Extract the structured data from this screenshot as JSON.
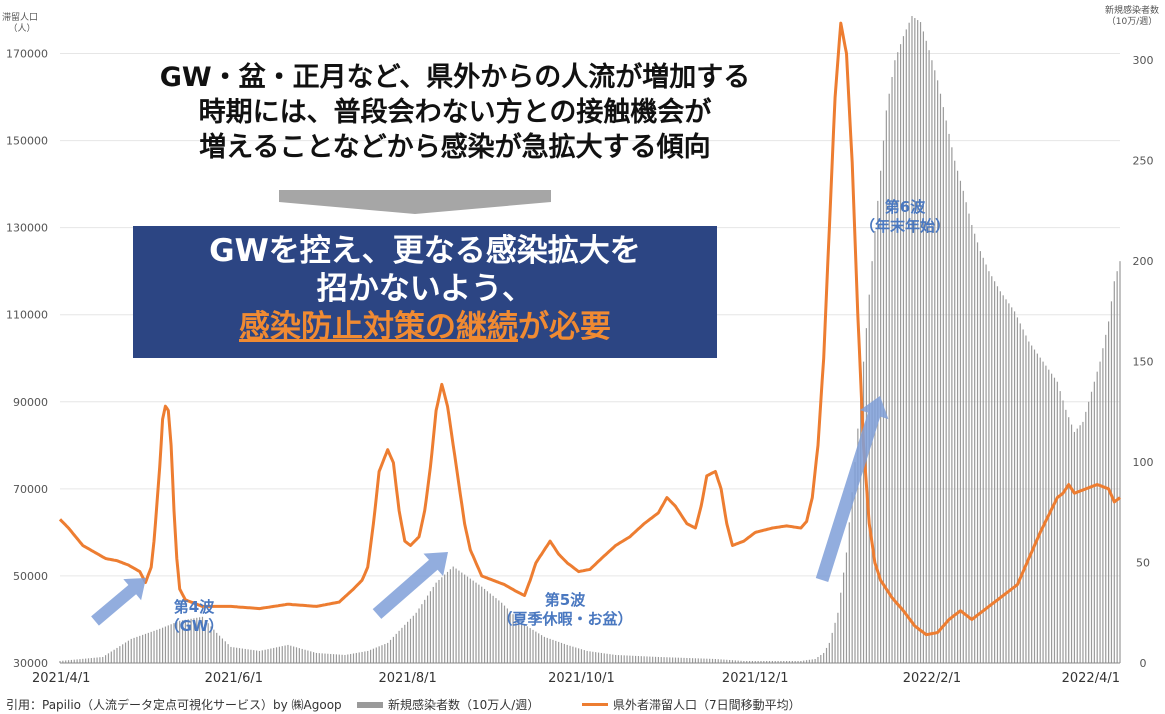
{
  "headline": {
    "line1": "GW・盆・正月など、県外からの人流が増加する",
    "line2": "時期には、普段会わない方との接触機会が",
    "line3": "増えることなどから感染が急拡大する傾向"
  },
  "callout": {
    "line1": "GWを控え、更なる感染拡大を",
    "line2": "招かないよう、",
    "line3_underlined": "感染防止対策の継続",
    "line3_rest": "が必要"
  },
  "wave_labels": {
    "w4_a": "第4波",
    "w4_b": "（GW）",
    "w5_a": "第5波",
    "w5_b": "（夏季休暇・お盆）",
    "w6_a": "第6波",
    "w6_b": "（年末年始）"
  },
  "footer": {
    "source": "引用：Papilio（人流データ定点可視化サービス）by ㈱Agoop",
    "legend_cases": "新規感染者数（10万人/週）",
    "legend_pop": "県外者滞留人口（7日間移動平均）"
  },
  "colors": {
    "bars": "#9a9a9a",
    "line": "#ed7d31",
    "arrows": "#7f9fd8",
    "callout_bg": "#2c4583",
    "callout_emph": "#f08a32",
    "wave_label": "#4a78c0"
  },
  "chart_data": {
    "type": "bar+line",
    "left_axis_title_1": "滞留人口",
    "left_axis_title_2": "（人）",
    "right_axis_title_1": "新規感染者数",
    "right_axis_title_2": "（10万/週）",
    "left_ylim": [
      30000,
      180000
    ],
    "left_ticks": [
      "30000",
      "50000",
      "70000",
      "90000",
      "110000",
      "130000",
      "150000",
      "170000"
    ],
    "right_ylim": [
      0,
      325
    ],
    "right_ticks": [
      "0",
      "50",
      "100",
      "150",
      "200",
      "250",
      "300"
    ],
    "x_ticks": [
      "2021/4/1",
      "2021/6/1",
      "2021/8/1",
      "2021/10/1",
      "2021/12/1",
      "2022/2/1",
      "2022/4/1"
    ],
    "x_tick_days": [
      0,
      61,
      122,
      183,
      244,
      306,
      365
    ],
    "x_max_day": 372,
    "cases_anchors": [
      [
        0,
        1
      ],
      [
        15,
        3
      ],
      [
        25,
        12
      ],
      [
        35,
        17
      ],
      [
        42,
        21
      ],
      [
        50,
        23
      ],
      [
        55,
        15
      ],
      [
        60,
        8
      ],
      [
        70,
        6
      ],
      [
        80,
        9
      ],
      [
        90,
        5
      ],
      [
        100,
        4
      ],
      [
        108,
        6
      ],
      [
        115,
        10
      ],
      [
        125,
        25
      ],
      [
        132,
        40
      ],
      [
        138,
        48
      ],
      [
        142,
        44
      ],
      [
        148,
        38
      ],
      [
        155,
        30
      ],
      [
        162,
        20
      ],
      [
        170,
        13
      ],
      [
        178,
        9
      ],
      [
        185,
        6
      ],
      [
        195,
        4
      ],
      [
        210,
        3
      ],
      [
        230,
        2
      ],
      [
        240,
        1
      ],
      [
        260,
        1
      ],
      [
        265,
        2
      ],
      [
        268,
        5
      ],
      [
        270,
        10
      ],
      [
        273,
        25
      ],
      [
        276,
        55
      ],
      [
        279,
        100
      ],
      [
        282,
        150
      ],
      [
        285,
        200
      ],
      [
        288,
        245
      ],
      [
        290,
        275
      ],
      [
        293,
        300
      ],
      [
        296,
        312
      ],
      [
        299,
        322
      ],
      [
        302,
        319
      ],
      [
        305,
        305
      ],
      [
        308,
        290
      ],
      [
        311,
        270
      ],
      [
        314,
        250
      ],
      [
        317,
        235
      ],
      [
        320,
        218
      ],
      [
        323,
        205
      ],
      [
        326,
        195
      ],
      [
        330,
        185
      ],
      [
        335,
        175
      ],
      [
        340,
        160
      ],
      [
        345,
        150
      ],
      [
        350,
        140
      ],
      [
        353,
        126
      ],
      [
        356,
        115
      ],
      [
        359,
        120
      ],
      [
        362,
        135
      ],
      [
        365,
        150
      ],
      [
        368,
        170
      ],
      [
        370,
        190
      ],
      [
        372,
        200
      ]
    ],
    "pop_anchors": [
      [
        0,
        63000
      ],
      [
        3,
        61000
      ],
      [
        8,
        57000
      ],
      [
        12,
        55500
      ],
      [
        16,
        54000
      ],
      [
        20,
        53500
      ],
      [
        24,
        52500
      ],
      [
        28,
        51000
      ],
      [
        30,
        48500
      ],
      [
        32,
        52000
      ],
      [
        33,
        58000
      ],
      [
        35,
        75000
      ],
      [
        36,
        86000
      ],
      [
        37,
        89000
      ],
      [
        38,
        88000
      ],
      [
        39,
        80000
      ],
      [
        40,
        65000
      ],
      [
        41,
        54000
      ],
      [
        42,
        47000
      ],
      [
        44,
        44500
      ],
      [
        50,
        43000
      ],
      [
        60,
        43000
      ],
      [
        70,
        42500
      ],
      [
        80,
        43500
      ],
      [
        90,
        43000
      ],
      [
        98,
        44000
      ],
      [
        103,
        47000
      ],
      [
        106,
        49000
      ],
      [
        108,
        52000
      ],
      [
        110,
        62000
      ],
      [
        112,
        74000
      ],
      [
        115,
        79000
      ],
      [
        117,
        76000
      ],
      [
        119,
        65000
      ],
      [
        121,
        58000
      ],
      [
        123,
        57000
      ],
      [
        126,
        59000
      ],
      [
        128,
        65000
      ],
      [
        130,
        75000
      ],
      [
        132,
        88000
      ],
      [
        134,
        94000
      ],
      [
        136,
        89000
      ],
      [
        138,
        80000
      ],
      [
        140,
        71000
      ],
      [
        142,
        62000
      ],
      [
        144,
        56000
      ],
      [
        148,
        50000
      ],
      [
        152,
        49000
      ],
      [
        156,
        48000
      ],
      [
        160,
        46500
      ],
      [
        163,
        45500
      ],
      [
        165,
        49000
      ],
      [
        167,
        53000
      ],
      [
        170,
        56000
      ],
      [
        172,
        58000
      ],
      [
        175,
        55000
      ],
      [
        178,
        53000
      ],
      [
        182,
        51000
      ],
      [
        186,
        51500
      ],
      [
        190,
        54000
      ],
      [
        195,
        57000
      ],
      [
        200,
        59000
      ],
      [
        205,
        62000
      ],
      [
        210,
        64500
      ],
      [
        213,
        68000
      ],
      [
        216,
        66000
      ],
      [
        220,
        62000
      ],
      [
        223,
        61000
      ],
      [
        225,
        66000
      ],
      [
        227,
        73000
      ],
      [
        230,
        74000
      ],
      [
        232,
        70000
      ],
      [
        234,
        62000
      ],
      [
        236,
        57000
      ],
      [
        240,
        58000
      ],
      [
        244,
        60000
      ],
      [
        250,
        61000
      ],
      [
        255,
        61500
      ],
      [
        260,
        61000
      ],
      [
        262,
        62500
      ],
      [
        264,
        68000
      ],
      [
        266,
        80000
      ],
      [
        268,
        100000
      ],
      [
        270,
        130000
      ],
      [
        272,
        160000
      ],
      [
        274,
        177000
      ],
      [
        276,
        170000
      ],
      [
        278,
        145000
      ],
      [
        280,
        110000
      ],
      [
        282,
        80000
      ],
      [
        284,
        62000
      ],
      [
        286,
        53000
      ],
      [
        288,
        49000
      ],
      [
        292,
        45000
      ],
      [
        296,
        42000
      ],
      [
        300,
        38500
      ],
      [
        304,
        36500
      ],
      [
        308,
        37000
      ],
      [
        312,
        40000
      ],
      [
        316,
        42000
      ],
      [
        320,
        40000
      ],
      [
        324,
        42000
      ],
      [
        328,
        44000
      ],
      [
        332,
        46000
      ],
      [
        336,
        48000
      ],
      [
        340,
        54000
      ],
      [
        344,
        60000
      ],
      [
        347,
        64000
      ],
      [
        350,
        68000
      ],
      [
        352,
        69000
      ],
      [
        354,
        71000
      ],
      [
        356,
        69000
      ],
      [
        360,
        70000
      ],
      [
        364,
        71000
      ],
      [
        368,
        70000
      ],
      [
        370,
        67000
      ],
      [
        372,
        68000
      ]
    ]
  }
}
